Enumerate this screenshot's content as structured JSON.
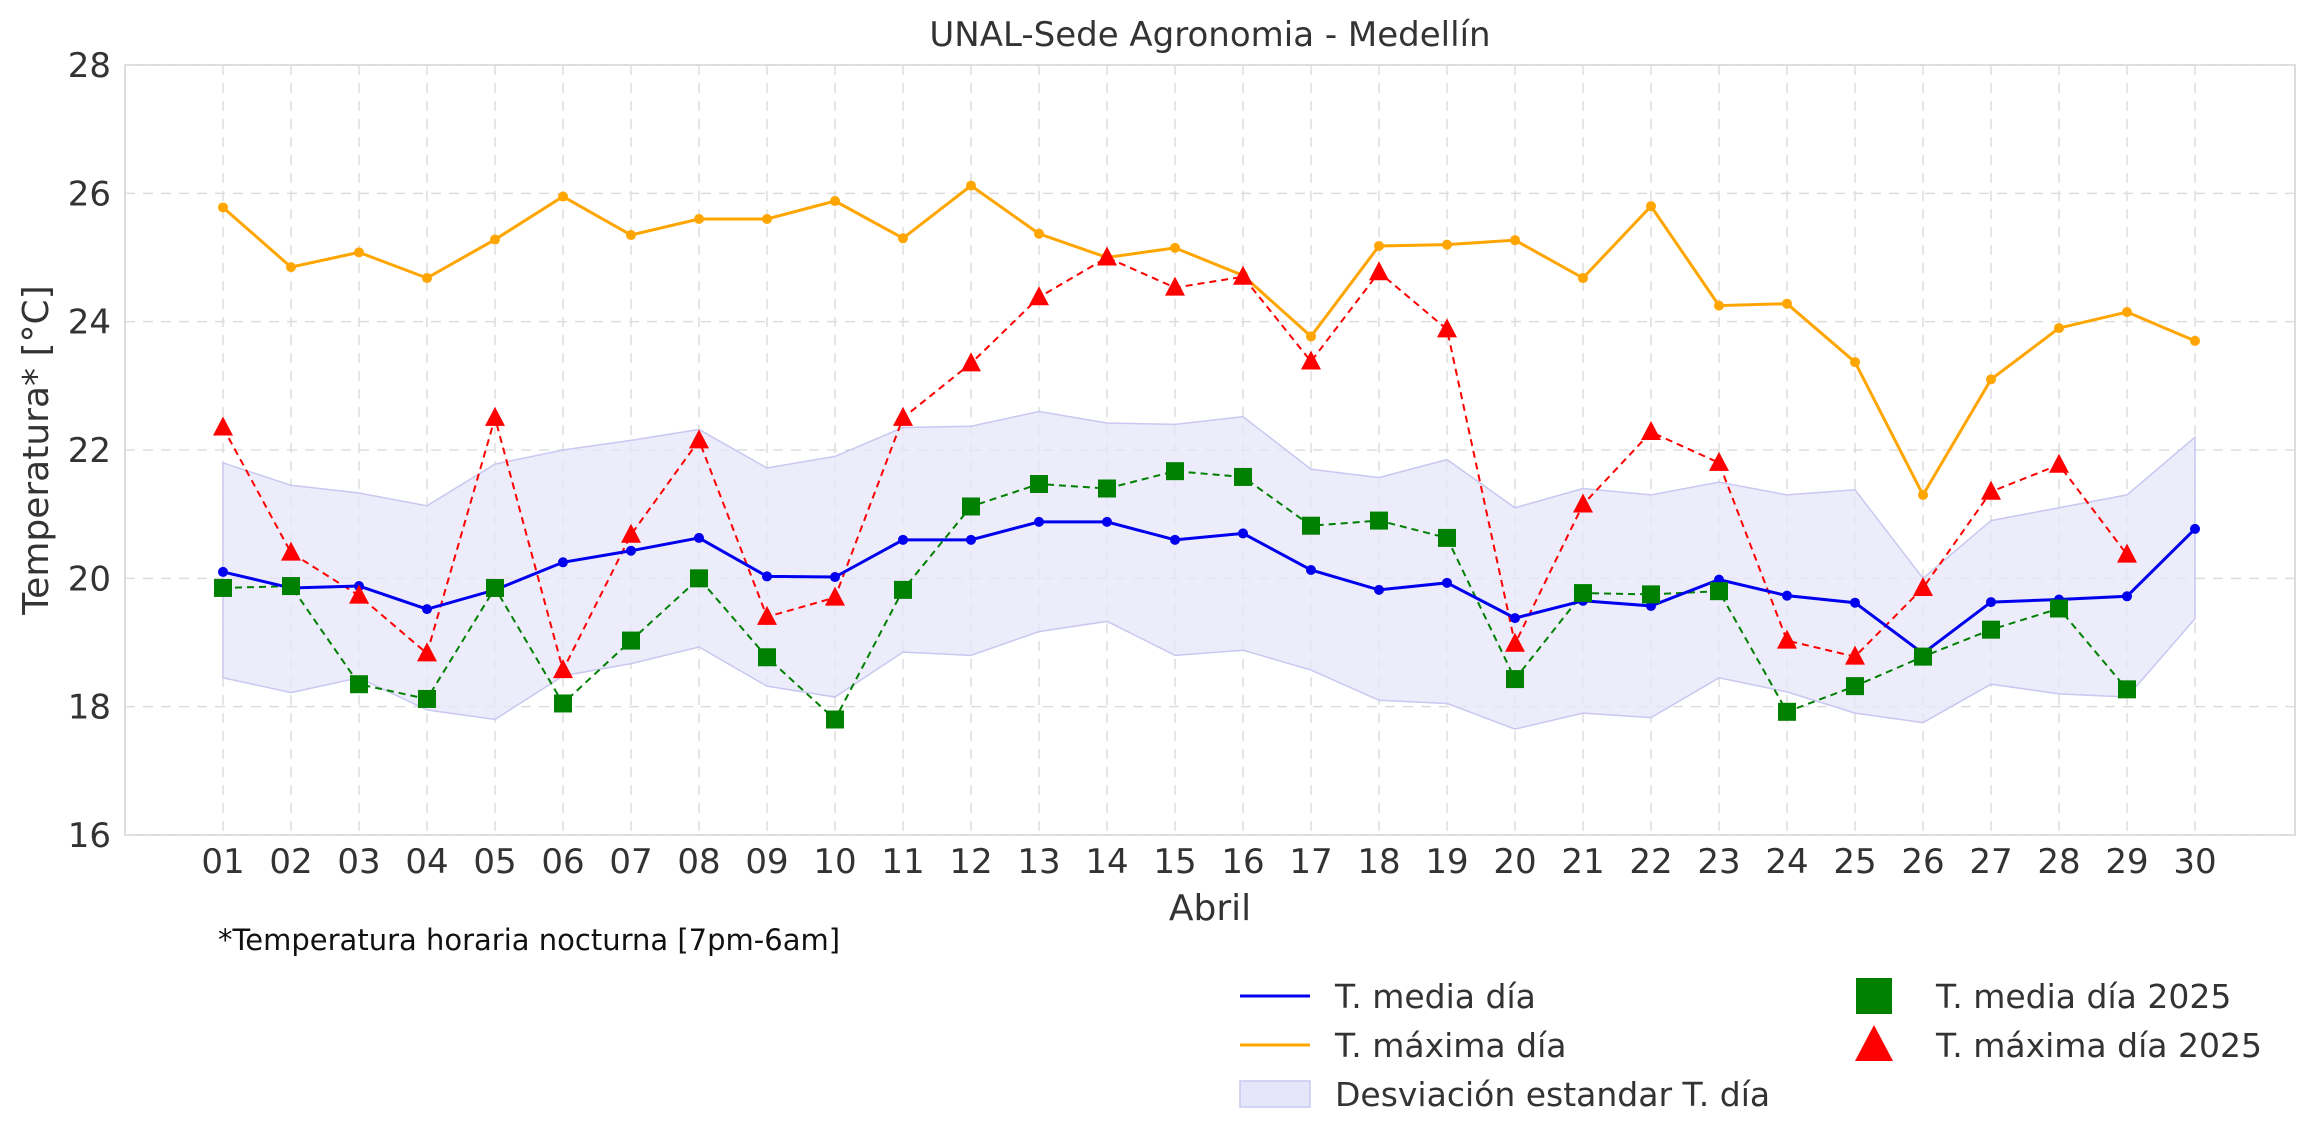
{
  "chart_data": {
    "type": "line",
    "title": "UNAL-Sede Agronomia - Medellín",
    "xlabel": "Abril",
    "ylabel": "Temperatura* [°C]",
    "footnote": "*Temperatura horaria nocturna [7pm-6am]",
    "categories": [
      "01",
      "02",
      "03",
      "04",
      "05",
      "06",
      "07",
      "08",
      "09",
      "10",
      "11",
      "12",
      "13",
      "14",
      "15",
      "16",
      "17",
      "18",
      "19",
      "20",
      "21",
      "22",
      "23",
      "24",
      "25",
      "26",
      "27",
      "28",
      "29",
      "30"
    ],
    "ylim": [
      16,
      28
    ],
    "yticks": [
      "16",
      "18",
      "20",
      "22",
      "24",
      "26",
      "28"
    ],
    "grid": true,
    "legend_position": "bottom-right",
    "series": [
      {
        "name": "T. media día",
        "kind": "line",
        "color": "#0000ee",
        "values": [
          20.1,
          19.85,
          19.88,
          19.52,
          19.82,
          20.25,
          20.43,
          20.63,
          20.03,
          20.02,
          20.6,
          20.6,
          20.88,
          20.88,
          20.6,
          20.7,
          20.13,
          19.82,
          19.93,
          19.38,
          19.65,
          19.57,
          19.98,
          19.73,
          19.62,
          18.83,
          19.63,
          19.67,
          19.72,
          20.77
        ]
      },
      {
        "name": "T. máxima día",
        "kind": "line",
        "color": "#ffa500",
        "values": [
          25.78,
          24.85,
          25.08,
          24.68,
          25.28,
          25.95,
          25.35,
          25.6,
          25.6,
          25.88,
          25.3,
          26.12,
          25.37,
          25.0,
          25.15,
          24.72,
          23.77,
          25.18,
          25.2,
          25.27,
          24.68,
          25.8,
          24.25,
          24.28,
          23.37,
          21.3,
          23.1,
          23.9,
          24.15,
          23.7
        ]
      },
      {
        "name": "Desviación estandar T. día",
        "kind": "band",
        "color": "#e6e6fa",
        "upper": [
          21.8,
          21.45,
          21.33,
          21.13,
          21.78,
          22.0,
          22.15,
          22.32,
          21.72,
          21.9,
          22.35,
          22.37,
          22.6,
          22.42,
          22.4,
          22.52,
          21.7,
          21.57,
          21.85,
          21.1,
          21.4,
          21.3,
          21.5,
          21.3,
          21.38,
          20.0,
          20.9,
          21.1,
          21.3,
          22.2
        ],
        "lower": [
          18.45,
          18.22,
          18.45,
          17.95,
          17.8,
          18.48,
          18.67,
          18.93,
          18.32,
          18.15,
          18.85,
          18.8,
          19.17,
          19.33,
          18.8,
          18.88,
          18.57,
          18.1,
          18.05,
          17.65,
          17.9,
          17.83,
          18.45,
          18.23,
          17.9,
          17.75,
          18.35,
          18.2,
          18.15,
          19.37
        ]
      },
      {
        "name": "T. media día 2025",
        "kind": "dashed-markers",
        "marker": "square",
        "color": "#008000",
        "values": [
          19.85,
          19.88,
          18.35,
          18.12,
          19.85,
          18.05,
          19.03,
          20.0,
          18.77,
          17.8,
          19.82,
          21.12,
          21.47,
          21.4,
          21.67,
          21.58,
          20.82,
          20.9,
          20.63,
          18.43,
          19.77,
          19.75,
          19.8,
          17.92,
          18.32,
          18.78,
          19.2,
          19.53,
          18.27,
          null
        ]
      },
      {
        "name": "T. máxima día 2025",
        "kind": "dashed-markers",
        "marker": "triangle",
        "color": "#ff0000",
        "values": [
          22.35,
          20.4,
          19.73,
          18.83,
          22.5,
          18.57,
          20.68,
          22.15,
          19.4,
          19.7,
          22.5,
          23.35,
          24.38,
          25.0,
          24.53,
          24.7,
          23.38,
          24.77,
          23.88,
          18.98,
          21.15,
          22.28,
          21.8,
          19.03,
          18.78,
          19.85,
          21.35,
          21.77,
          20.37,
          null
        ]
      }
    ]
  }
}
